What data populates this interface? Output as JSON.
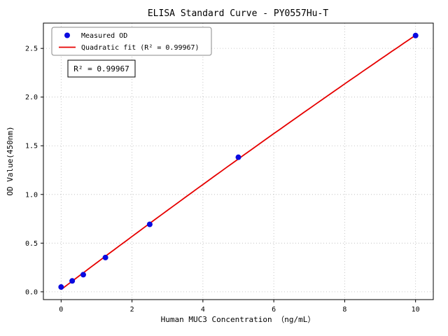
{
  "chart_data": {
    "type": "scatter",
    "title": "ELISA Standard Curve - PY0557Hu-T",
    "xlabel": "Human MUC3 Concentration （ng/mL）",
    "ylabel": "OD Value(450nm)",
    "xlim": [
      -0.5,
      10.5
    ],
    "ylim": [
      -0.08,
      2.76
    ],
    "xticks": [
      0,
      2,
      4,
      6,
      8,
      10
    ],
    "xtick_labels": [
      "0",
      "2",
      "4",
      "6",
      "8",
      "10"
    ],
    "yticks": [
      0,
      0.5,
      1.0,
      1.5,
      2.0,
      2.5
    ],
    "ytick_labels": [
      "0.0",
      "0.5",
      "1.0",
      "1.5",
      "2.0",
      "2.5"
    ],
    "grid": true,
    "legend": {
      "position": "upper-left",
      "entries": [
        {
          "label": "Measured OD",
          "marker": "dot",
          "color": "#0a0ae0"
        },
        {
          "label": "Quadratic fit (R² = 0.99967)",
          "marker": "line",
          "color": "#e60000"
        }
      ]
    },
    "annotation": "R² = 0.99967",
    "series": [
      {
        "name": "Measured OD",
        "type": "scatter",
        "color": "#0a0ae0",
        "x": [
          0,
          0.3125,
          0.625,
          1.25,
          2.5,
          5,
          10
        ],
        "y": [
          0.049,
          0.112,
          0.176,
          0.352,
          0.693,
          1.382,
          2.632
        ]
      },
      {
        "name": "Quadratic fit",
        "type": "line",
        "color": "#e60000",
        "fit": "quadratic",
        "r_squared": "0.99967",
        "x_range": [
          0,
          10
        ]
      }
    ]
  }
}
